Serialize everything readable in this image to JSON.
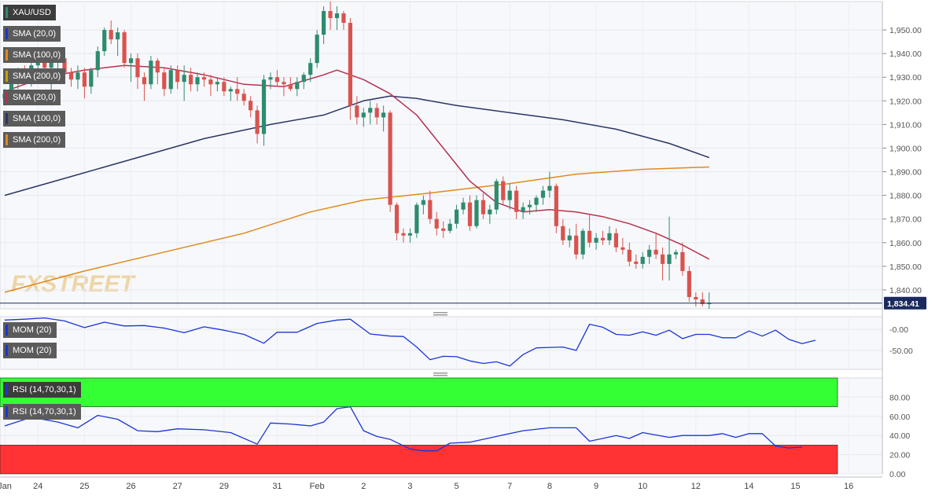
{
  "chart_data": {
    "type": "candlestick",
    "symbol": "XAU/USD",
    "last_price_label": "1,834.41",
    "last_price": 1834.41,
    "colors": {
      "up": "#2e8b6e",
      "down": "#d9534f",
      "sma20": "#b5324f",
      "sma100": "#2c3566",
      "sma200": "#e08a1e",
      "mom": "#1a35d6",
      "rsi": "#1a35d6",
      "overbought": "#33ff33",
      "oversold": "#ff3333"
    },
    "indicator_labels": [
      "SMA (20,0)",
      "SMA (100,0)",
      "SMA (200,0)",
      "SMA (20,0)",
      "SMA (100,0)",
      "SMA (200,0)"
    ],
    "mom_labels": [
      "MOM (20)",
      "MOM (20)"
    ],
    "rsi_labels": [
      "RSI (14,70,30,1)",
      "RSI (14,70,30,1)"
    ],
    "price_axis": {
      "ylim": [
        1832,
        1962
      ],
      "ticks": [
        "1,950.00",
        "1,940.00",
        "1,930.00",
        "1,920.00",
        "1,910.00",
        "1,900.00",
        "1,890.00",
        "1,880.00",
        "1,870.00",
        "1,860.00",
        "1,850.00",
        "1,840.00"
      ],
      "tick_values": [
        1950,
        1940,
        1930,
        1920,
        1910,
        1900,
        1890,
        1880,
        1870,
        1860,
        1850,
        1840
      ]
    },
    "mom_axis": {
      "ylim": [
        -95,
        30
      ],
      "ticks": [
        "-0.00",
        "-50.00"
      ],
      "tick_values": [
        0,
        -50
      ]
    },
    "rsi_axis": {
      "ylim": [
        0,
        100
      ],
      "ticks": [
        "80.00",
        "60.00",
        "40.00",
        "20.00",
        "0.00"
      ],
      "tick_values": [
        80,
        60,
        40,
        20,
        0
      ],
      "overbought": 70,
      "oversold": 30
    },
    "x_labels": [
      "Jan",
      "24",
      "25",
      "26",
      "27",
      "29",
      "31",
      "Feb",
      "2",
      "3",
      "5",
      "7",
      "8",
      "9",
      "10",
      "12",
      "14",
      "15",
      "16"
    ],
    "x_label_bar_index": [
      0,
      5,
      12,
      19,
      26,
      33,
      41,
      47,
      54,
      61,
      68,
      76,
      82,
      89,
      96,
      104,
      112,
      119,
      127
    ],
    "candles": [
      [
        1921,
        1925,
        1918,
        1923
      ],
      [
        1923,
        1930,
        1920,
        1928
      ],
      [
        1928,
        1934,
        1925,
        1931
      ],
      [
        1931,
        1935,
        1927,
        1929
      ],
      [
        1929,
        1936,
        1926,
        1935
      ],
      [
        1935,
        1941,
        1931,
        1939
      ],
      [
        1939,
        1942,
        1932,
        1934
      ],
      [
        1934,
        1939,
        1918,
        1937
      ],
      [
        1937,
        1940,
        1931,
        1938
      ],
      [
        1938,
        1939,
        1929,
        1932
      ],
      [
        1932,
        1934,
        1926,
        1929
      ],
      [
        1929,
        1935,
        1925,
        1932
      ],
      [
        1932,
        1934,
        1921,
        1926
      ],
      [
        1926,
        1934,
        1923,
        1933
      ],
      [
        1933,
        1943,
        1930,
        1941
      ],
      [
        1941,
        1951,
        1939,
        1950
      ],
      [
        1950,
        1954,
        1944,
        1946
      ],
      [
        1946,
        1951,
        1939,
        1949
      ],
      [
        1949,
        1950,
        1934,
        1936
      ],
      [
        1936,
        1940,
        1928,
        1938
      ],
      [
        1938,
        1940,
        1925,
        1930
      ],
      [
        1930,
        1932,
        1920,
        1927
      ],
      [
        1927,
        1939,
        1925,
        1937
      ],
      [
        1937,
        1938,
        1927,
        1932
      ],
      [
        1932,
        1934,
        1922,
        1925
      ],
      [
        1925,
        1935,
        1923,
        1933
      ],
      [
        1933,
        1935,
        1925,
        1928
      ],
      [
        1928,
        1935,
        1920,
        1931
      ],
      [
        1931,
        1934,
        1924,
        1927
      ],
      [
        1927,
        1932,
        1924,
        1930
      ],
      [
        1930,
        1932,
        1926,
        1929
      ],
      [
        1929,
        1931,
        1922,
        1927
      ],
      [
        1927,
        1930,
        1924,
        1928
      ],
      [
        1928,
        1930,
        1922,
        1924
      ],
      [
        1924,
        1926,
        1920,
        1925
      ],
      [
        1925,
        1930,
        1920,
        1923
      ],
      [
        1923,
        1925,
        1918,
        1920
      ],
      [
        1920,
        1922,
        1913,
        1916
      ],
      [
        1916,
        1918,
        1902,
        1906
      ],
      [
        1906,
        1931,
        1901,
        1929
      ],
      [
        1929,
        1932,
        1925,
        1930
      ],
      [
        1930,
        1933,
        1926,
        1928
      ],
      [
        1928,
        1930,
        1922,
        1927
      ],
      [
        1927,
        1930,
        1924,
        1925
      ],
      [
        1925,
        1930,
        1922,
        1928
      ],
      [
        1928,
        1932,
        1925,
        1931
      ],
      [
        1931,
        1938,
        1928,
        1936
      ],
      [
        1936,
        1950,
        1934,
        1948
      ],
      [
        1948,
        1960,
        1944,
        1958
      ],
      [
        1958,
        1962,
        1950,
        1955
      ],
      [
        1955,
        1960,
        1950,
        1957
      ],
      [
        1957,
        1958,
        1950,
        1953
      ],
      [
        1953,
        1955,
        1912,
        1918
      ],
      [
        1918,
        1922,
        1910,
        1913
      ],
      [
        1913,
        1917,
        1909,
        1915
      ],
      [
        1915,
        1920,
        1910,
        1917
      ],
      [
        1917,
        1919,
        1910,
        1913
      ],
      [
        1913,
        1918,
        1907,
        1915
      ],
      [
        1915,
        1916,
        1873,
        1876
      ],
      [
        1876,
        1877,
        1861,
        1864
      ],
      [
        1864,
        1866,
        1860,
        1863
      ],
      [
        1863,
        1866,
        1860,
        1864
      ],
      [
        1864,
        1877,
        1862,
        1876
      ],
      [
        1876,
        1880,
        1872,
        1878
      ],
      [
        1878,
        1882,
        1868,
        1870
      ],
      [
        1870,
        1873,
        1863,
        1866
      ],
      [
        1866,
        1869,
        1862,
        1865
      ],
      [
        1865,
        1870,
        1864,
        1868
      ],
      [
        1868,
        1876,
        1866,
        1874
      ],
      [
        1874,
        1879,
        1872,
        1877
      ],
      [
        1877,
        1880,
        1865,
        1867
      ],
      [
        1867,
        1880,
        1866,
        1878
      ],
      [
        1878,
        1881,
        1870,
        1872
      ],
      [
        1872,
        1876,
        1868,
        1874
      ],
      [
        1874,
        1887,
        1872,
        1886
      ],
      [
        1886,
        1888,
        1876,
        1878
      ],
      [
        1878,
        1885,
        1874,
        1882
      ],
      [
        1882,
        1884,
        1870,
        1873
      ],
      [
        1873,
        1877,
        1870,
        1875
      ],
      [
        1875,
        1878,
        1872,
        1876
      ],
      [
        1876,
        1880,
        1873,
        1879
      ],
      [
        1879,
        1884,
        1876,
        1882
      ],
      [
        1882,
        1890,
        1879,
        1884
      ],
      [
        1884,
        1885,
        1864,
        1867
      ],
      [
        1867,
        1870,
        1859,
        1861
      ],
      [
        1861,
        1866,
        1858,
        1863
      ],
      [
        1863,
        1868,
        1853,
        1855
      ],
      [
        1855,
        1866,
        1853,
        1865
      ],
      [
        1865,
        1872,
        1858,
        1860
      ],
      [
        1860,
        1864,
        1857,
        1862
      ],
      [
        1862,
        1865,
        1859,
        1861
      ],
      [
        1861,
        1867,
        1859,
        1864
      ],
      [
        1864,
        1866,
        1856,
        1858
      ],
      [
        1858,
        1862,
        1855,
        1857
      ],
      [
        1857,
        1860,
        1850,
        1852
      ],
      [
        1852,
        1855,
        1849,
        1851
      ],
      [
        1851,
        1856,
        1849,
        1854
      ],
      [
        1854,
        1859,
        1851,
        1857
      ],
      [
        1857,
        1864,
        1853,
        1855
      ],
      [
        1855,
        1858,
        1844,
        1851
      ],
      [
        1851,
        1871,
        1844,
        1855
      ],
      [
        1855,
        1857,
        1853,
        1856
      ],
      [
        1856,
        1860,
        1846,
        1848
      ],
      [
        1848,
        1850,
        1835,
        1837
      ],
      [
        1837,
        1839,
        1833,
        1836
      ],
      [
        1836,
        1839,
        1833,
        1834
      ],
      [
        1834,
        1839,
        1832,
        1834.41
      ]
    ],
    "sma20": [
      [
        0,
        1924
      ],
      [
        6,
        1930
      ],
      [
        12,
        1933
      ],
      [
        18,
        1935
      ],
      [
        24,
        1934
      ],
      [
        30,
        1931
      ],
      [
        36,
        1927
      ],
      [
        42,
        1926
      ],
      [
        48,
        1931
      ],
      [
        50,
        1933
      ],
      [
        54,
        1929
      ],
      [
        58,
        1923
      ],
      [
        62,
        1914
      ],
      [
        66,
        1900
      ],
      [
        70,
        1886
      ],
      [
        74,
        1877
      ],
      [
        78,
        1873
      ],
      [
        82,
        1874
      ],
      [
        86,
        1873
      ],
      [
        90,
        1871
      ],
      [
        94,
        1868
      ],
      [
        98,
        1864
      ],
      [
        102,
        1859
      ],
      [
        106,
        1853
      ]
    ],
    "sma100": [
      [
        0,
        1880
      ],
      [
        10,
        1888
      ],
      [
        20,
        1896
      ],
      [
        30,
        1904
      ],
      [
        40,
        1910
      ],
      [
        48,
        1914
      ],
      [
        54,
        1920
      ],
      [
        58,
        1922
      ],
      [
        62,
        1921
      ],
      [
        68,
        1918
      ],
      [
        76,
        1915
      ],
      [
        84,
        1912
      ],
      [
        92,
        1908
      ],
      [
        100,
        1902
      ],
      [
        106,
        1896
      ]
    ],
    "sma200": [
      [
        0,
        1839
      ],
      [
        12,
        1848
      ],
      [
        24,
        1856
      ],
      [
        36,
        1864
      ],
      [
        46,
        1873
      ],
      [
        54,
        1878
      ],
      [
        64,
        1881
      ],
      [
        76,
        1885
      ],
      [
        86,
        1889
      ],
      [
        96,
        1891
      ],
      [
        106,
        1892
      ]
    ],
    "mom": [
      [
        0,
        22
      ],
      [
        3,
        24
      ],
      [
        6,
        27
      ],
      [
        9,
        20
      ],
      [
        12,
        4
      ],
      [
        15,
        17
      ],
      [
        18,
        8
      ],
      [
        21,
        9
      ],
      [
        24,
        3
      ],
      [
        27,
        -8
      ],
      [
        30,
        6
      ],
      [
        33,
        -2
      ],
      [
        36,
        -12
      ],
      [
        39,
        -33
      ],
      [
        41,
        -7
      ],
      [
        44,
        -7
      ],
      [
        47,
        14
      ],
      [
        50,
        22
      ],
      [
        52,
        24
      ],
      [
        55,
        -11
      ],
      [
        58,
        -16
      ],
      [
        60,
        -17
      ],
      [
        62,
        -42
      ],
      [
        64,
        -72
      ],
      [
        66,
        -64
      ],
      [
        68,
        -65
      ],
      [
        70,
        -75
      ],
      [
        72,
        -81
      ],
      [
        74,
        -77
      ],
      [
        76,
        -87
      ],
      [
        78,
        -60
      ],
      [
        80,
        -44
      ],
      [
        82,
        -43
      ],
      [
        84,
        -42
      ],
      [
        86,
        -50
      ],
      [
        88,
        12
      ],
      [
        90,
        5
      ],
      [
        92,
        -12
      ],
      [
        94,
        -14
      ],
      [
        96,
        -6
      ],
      [
        98,
        -14
      ],
      [
        100,
        -2
      ],
      [
        102,
        -22
      ],
      [
        104,
        -12
      ],
      [
        106,
        -12
      ],
      [
        108,
        -20
      ],
      [
        110,
        -20
      ],
      [
        112,
        -4
      ],
      [
        114,
        -16
      ],
      [
        116,
        -2
      ],
      [
        118,
        -24
      ],
      [
        120,
        -34
      ],
      [
        122,
        -26
      ]
    ],
    "rsi": [
      [
        0,
        50
      ],
      [
        4,
        59
      ],
      [
        8,
        54
      ],
      [
        11,
        48
      ],
      [
        14,
        61
      ],
      [
        17,
        57
      ],
      [
        20,
        45
      ],
      [
        23,
        44
      ],
      [
        26,
        47
      ],
      [
        30,
        46
      ],
      [
        34,
        43
      ],
      [
        38,
        31
      ],
      [
        40,
        53
      ],
      [
        43,
        52
      ],
      [
        46,
        50
      ],
      [
        48,
        54
      ],
      [
        50,
        68
      ],
      [
        52,
        70
      ],
      [
        54,
        45
      ],
      [
        56,
        39
      ],
      [
        58,
        36
      ],
      [
        61,
        26
      ],
      [
        63,
        24
      ],
      [
        65,
        24
      ],
      [
        67,
        32
      ],
      [
        70,
        33
      ],
      [
        74,
        39
      ],
      [
        78,
        45
      ],
      [
        82,
        48
      ],
      [
        86,
        48
      ],
      [
        88,
        34
      ],
      [
        90,
        37
      ],
      [
        92,
        40
      ],
      [
        94,
        37
      ],
      [
        96,
        43
      ],
      [
        100,
        38
      ],
      [
        102,
        40
      ],
      [
        106,
        40
      ],
      [
        108,
        42
      ],
      [
        110,
        38
      ],
      [
        112,
        42
      ],
      [
        114,
        42
      ],
      [
        116,
        29
      ],
      [
        118,
        27
      ],
      [
        120,
        28
      ]
    ]
  }
}
